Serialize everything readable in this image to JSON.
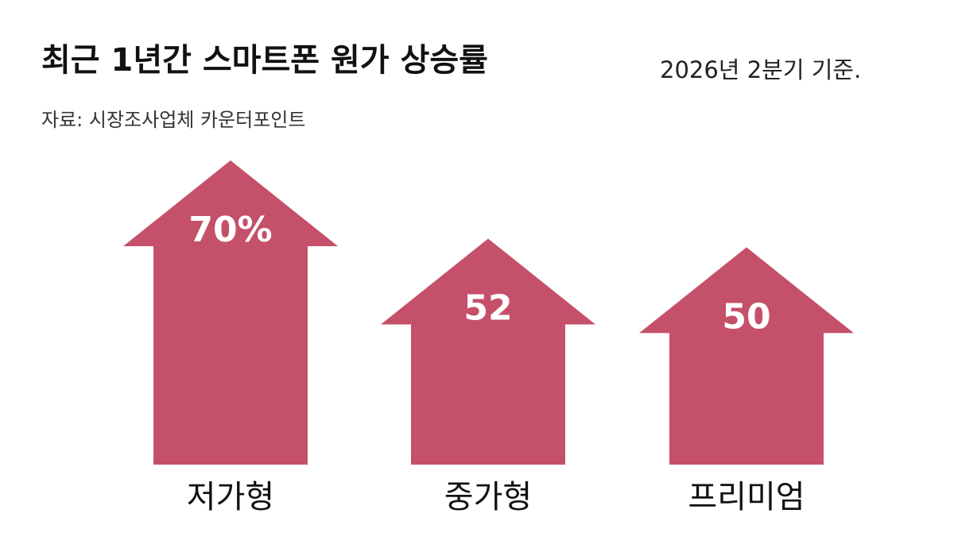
{
  "chart_data": {
    "type": "arrow-bar",
    "title": "최근 1년간 스마트폰 원가 상승률",
    "subtitle": "2026년 2분기 기준.",
    "source": "자료: 시장조사업체 카운터포인트",
    "categories": [
      "저가형",
      "중가형",
      "프리미엄"
    ],
    "values": [
      70,
      52,
      50
    ],
    "value_labels": [
      "70%",
      "52",
      "50"
    ],
    "color": "#c5506a"
  }
}
